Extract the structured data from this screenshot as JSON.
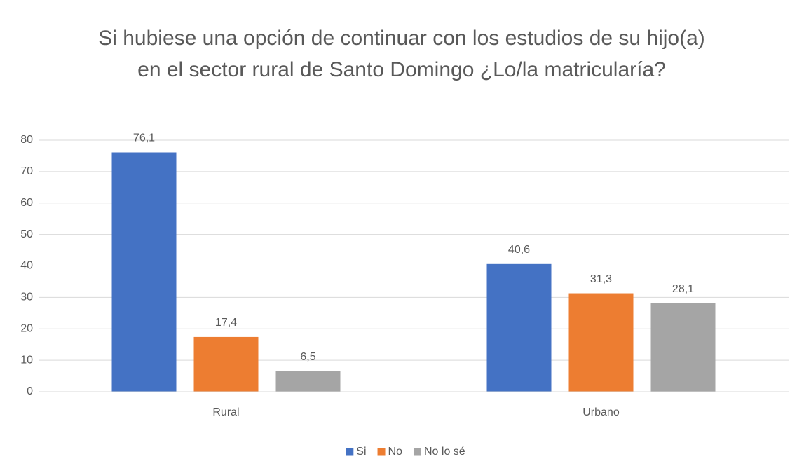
{
  "chart_data": {
    "type": "bar",
    "title": "Si hubiese una opción de continuar con los estudios de su hijo(a) en el sector rural de Santo Domingo ¿Lo/la matricularía?",
    "categories": [
      "Rural",
      "Urbano"
    ],
    "series": [
      {
        "name": "Si",
        "color": "#4472c4",
        "values": [
          76.1,
          40.6
        ],
        "value_labels": [
          "76,1",
          "40,6"
        ]
      },
      {
        "name": "No",
        "color": "#ed7d31",
        "values": [
          17.4,
          31.3
        ],
        "value_labels": [
          "17,4",
          "31,3"
        ]
      },
      {
        "name": "No lo sé",
        "color": "#a5a5a5",
        "values": [
          6.5,
          28.1
        ],
        "value_labels": [
          "6,5",
          "28,1"
        ]
      }
    ],
    "ylim": [
      0,
      80
    ],
    "yticks": [
      0,
      10,
      20,
      30,
      40,
      50,
      60,
      70,
      80
    ],
    "grid": true,
    "legend": "bottom"
  }
}
